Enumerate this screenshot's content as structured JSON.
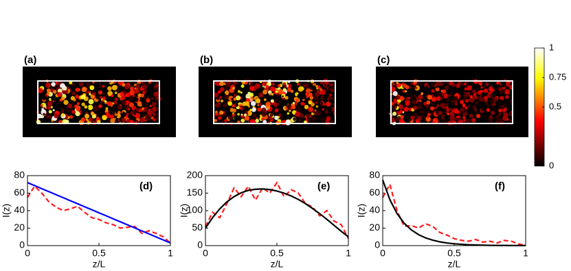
{
  "panels": [
    {
      "label": "(a)"
    },
    {
      "label": "(b)"
    },
    {
      "label": "(c)"
    }
  ],
  "colorbar": {
    "lim": [
      0,
      1
    ],
    "ticks": [
      0,
      0.5,
      0.75,
      1
    ]
  },
  "chart_data": [
    {
      "type": "line",
      "annotation": "(d)",
      "x_label": "z/L",
      "y_label": "I(z)",
      "xlim": [
        0,
        1
      ],
      "xticks": [
        0,
        0.5,
        1
      ],
      "ylim": [
        0,
        80
      ],
      "yticks": [
        0,
        20,
        40,
        60,
        80
      ],
      "x": [
        0,
        0.05,
        0.1,
        0.15,
        0.2,
        0.25,
        0.3,
        0.35,
        0.4,
        0.45,
        0.5,
        0.55,
        0.6,
        0.65,
        0.7,
        0.75,
        0.8,
        0.85,
        0.9,
        0.95,
        1
      ],
      "series": [
        {
          "color": "#ff1a1a",
          "style": "dashed",
          "values": [
            55,
            68,
            60,
            50,
            44,
            40,
            42,
            45,
            38,
            32,
            30,
            26,
            24,
            20,
            21,
            22,
            14,
            17,
            14,
            10,
            3
          ]
        },
        {
          "color": "#0000ff",
          "style": "solid",
          "values": [
            72,
            68.6,
            65.1,
            61.7,
            58.2,
            54.8,
            51.3,
            47.9,
            44.4,
            41,
            37.5,
            34.1,
            30.6,
            27.2,
            23.7,
            20.3,
            16.8,
            13.4,
            9.9,
            6.5,
            3
          ]
        }
      ]
    },
    {
      "type": "line",
      "annotation": "(e)",
      "x_label": "z/L",
      "y_label": "I(z)",
      "xlim": [
        0,
        1
      ],
      "xticks": [
        0,
        0.5,
        1
      ],
      "ylim": [
        0,
        200
      ],
      "yticks": [
        0,
        50,
        100,
        150,
        200
      ],
      "x": [
        0,
        0.05,
        0.1,
        0.15,
        0.2,
        0.25,
        0.3,
        0.35,
        0.4,
        0.45,
        0.5,
        0.55,
        0.6,
        0.65,
        0.7,
        0.75,
        0.8,
        0.85,
        0.9,
        0.95,
        1
      ],
      "series": [
        {
          "color": "#ff1a1a",
          "style": "dashed",
          "values": [
            55,
            95,
            80,
            120,
            165,
            140,
            170,
            130,
            165,
            150,
            180,
            140,
            160,
            150,
            120,
            110,
            85,
            100,
            70,
            60,
            20
          ]
        },
        {
          "color": "#000000",
          "style": "solid",
          "values": [
            50,
            80,
            105,
            125,
            140,
            151,
            158,
            161,
            162,
            160,
            156,
            150,
            142,
            132,
            120,
            106,
            91,
            75,
            58,
            41,
            25
          ]
        }
      ]
    },
    {
      "type": "line",
      "annotation": "(f)",
      "x_label": "z/L",
      "y_label": "I(z)",
      "xlim": [
        0,
        1
      ],
      "xticks": [
        0,
        0.5,
        1
      ],
      "ylim": [
        0,
        80
      ],
      "yticks": [
        0,
        20,
        40,
        60,
        80
      ],
      "x": [
        0,
        0.05,
        0.1,
        0.15,
        0.2,
        0.25,
        0.3,
        0.35,
        0.4,
        0.45,
        0.5,
        0.55,
        0.6,
        0.65,
        0.7,
        0.75,
        0.8,
        0.85,
        0.9,
        0.95,
        1
      ],
      "series": [
        {
          "color": "#ff1a1a",
          "style": "dashed",
          "values": [
            55,
            70,
            40,
            22,
            23,
            20,
            25,
            22,
            15,
            12,
            8,
            6,
            5,
            7,
            4,
            5,
            3,
            6,
            5,
            2,
            0
          ]
        },
        {
          "color": "#000000",
          "style": "solid",
          "values": [
            75,
            52.5,
            36.7,
            25.6,
            18,
            12.6,
            8.8,
            6.2,
            4.3,
            3,
            2.1,
            1.5,
            1,
            0.7,
            0.5,
            0.3,
            0.2,
            0.2,
            0.1,
            0.1,
            0.1
          ]
        }
      ]
    }
  ]
}
